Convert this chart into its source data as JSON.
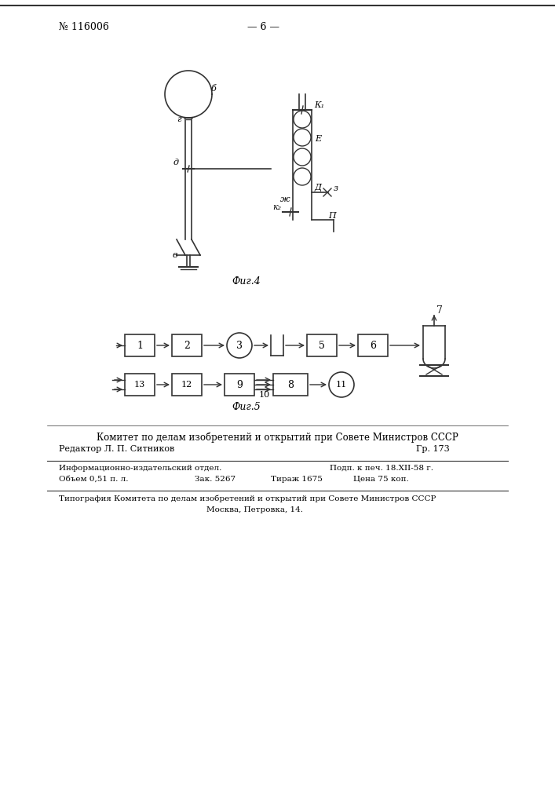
{
  "page_number": "№ 116006",
  "page_label": "— 6 —",
  "fig4_label": "Фиг.4",
  "fig5_label": "Фиг.5",
  "footer_title": "Комитет по делам изобретений и открытий при Совете Министров СССР",
  "footer_editor": "Редактор Л. П. Ситников",
  "footer_gr": "Гр. 173",
  "footer_line1a": "Информационно-издательский отдел.",
  "footer_line1b": "Подп. к печ. 18.XII-58 г.",
  "footer_line2a": "Объем 0,51 п. л.",
  "footer_line2b": "Зак. 5267",
  "footer_line2c": "Тираж 1675",
  "footer_line2d": "Цена 75 коп.",
  "footer_line3": "Типография Комитета по делам изобретений и открытий при Совете Министров СССР",
  "footer_line4": "Москва, Петровка, 14.",
  "bg_color": "#ffffff",
  "text_color": "#000000",
  "line_color": "#333333"
}
